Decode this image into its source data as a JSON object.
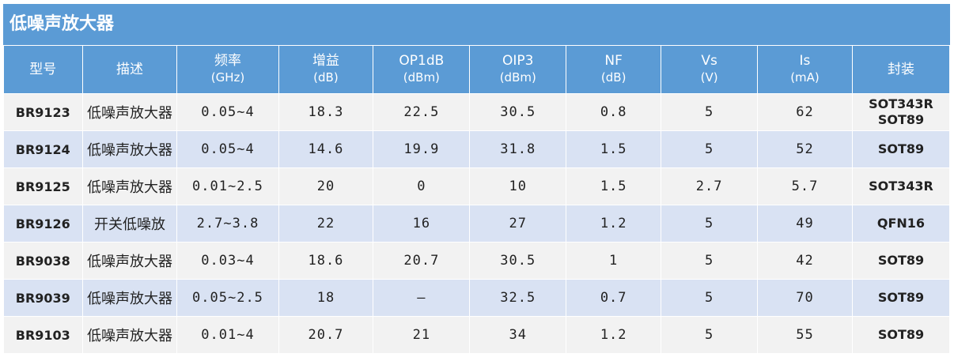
{
  "title": "低噪声放大器",
  "headers": [
    {
      "main": "型号",
      "sub": ""
    },
    {
      "main": "描述",
      "sub": ""
    },
    {
      "main": "频率",
      "sub": "(GHz)"
    },
    {
      "main": "增益",
      "sub": "(dB)"
    },
    {
      "main": "OP1dB",
      "sub": "(dBm)"
    },
    {
      "main": "OIP3",
      "sub": "(dBm)"
    },
    {
      "main": "NF",
      "sub": "(dB)"
    },
    {
      "main": "Vs",
      "sub": "(V)"
    },
    {
      "main": "Is",
      "sub": "(mA)"
    },
    {
      "main": "封装",
      "sub": ""
    }
  ],
  "rows": [
    {
      "model": "BR9123",
      "desc": "低噪声放大器",
      "freq": "0.05~4",
      "gain": "18.3",
      "op1db": "22.5",
      "oip3": "30.5",
      "nf": "0.8",
      "vs": "5",
      "is": "62",
      "pkg": [
        "SOT343R",
        "SOT89"
      ]
    },
    {
      "model": "BR9124",
      "desc": "低噪声放大器",
      "freq": "0.05~4",
      "gain": "14.6",
      "op1db": "19.9",
      "oip3": "31.8",
      "nf": "1.5",
      "vs": "5",
      "is": "52",
      "pkg": [
        "SOT89"
      ]
    },
    {
      "model": "BR9125",
      "desc": "低噪声放大器",
      "freq": "0.01~2.5",
      "gain": "20",
      "op1db": "0",
      "oip3": "10",
      "nf": "1.5",
      "vs": "2.7",
      "is": "5.7",
      "pkg": [
        "SOT343R"
      ]
    },
    {
      "model": "BR9126",
      "desc": "开关低噪放",
      "freq": "2.7~3.8",
      "gain": "22",
      "op1db": "16",
      "oip3": "27",
      "nf": "1.2",
      "vs": "5",
      "is": "49",
      "pkg": [
        "QFN16"
      ]
    },
    {
      "model": "BR9038",
      "desc": "低噪声放大器",
      "freq": "0.03~4",
      "gain": "18.6",
      "op1db": "20.7",
      "oip3": "30.5",
      "nf": "1",
      "vs": "5",
      "is": "42",
      "pkg": [
        "SOT89"
      ]
    },
    {
      "model": "BR9039",
      "desc": "低噪声放大器",
      "freq": "0.05~2.5",
      "gain": "18",
      "op1db": "–",
      "oip3": "32.5",
      "nf": "0.7",
      "vs": "5",
      "is": "70",
      "pkg": [
        "SOT89"
      ]
    },
    {
      "model": "BR9103",
      "desc": "低噪声放大器",
      "freq": "0.01~4",
      "gain": "20.7",
      "op1db": "21",
      "oip3": "34",
      "nf": "1.2",
      "vs": "5",
      "is": "55",
      "pkg": [
        "SOT89"
      ]
    }
  ],
  "colors": {
    "header_bg": "#5b9bd5",
    "row_light": "#f2f2f2",
    "row_blue": "#d9e2f3",
    "header_text": "#ffffff"
  }
}
